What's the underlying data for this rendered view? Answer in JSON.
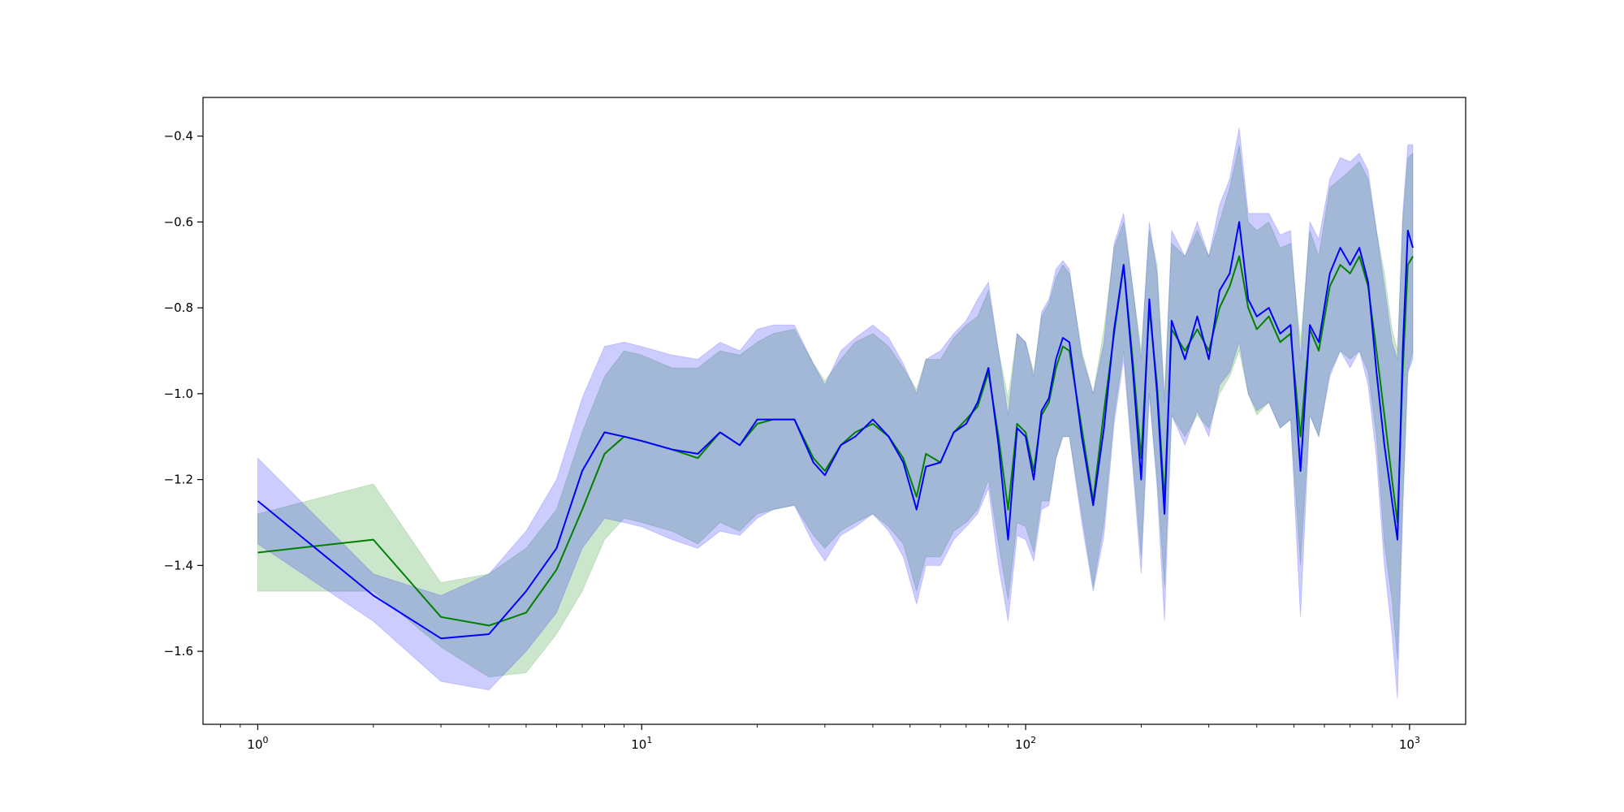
{
  "chart_data": {
    "type": "line",
    "title": "",
    "xlabel": "",
    "ylabel": "",
    "xscale": "log",
    "xlim": [
      0.72,
      1400
    ],
    "ylim": [
      -1.77,
      -0.31
    ],
    "grid": false,
    "legend": "none",
    "x_ticks": [
      {
        "value": 1,
        "base": "10",
        "exp": "0"
      },
      {
        "value": 10,
        "base": "10",
        "exp": "1"
      },
      {
        "value": 100,
        "base": "10",
        "exp": "2"
      },
      {
        "value": 1000,
        "base": "10",
        "exp": "3"
      }
    ],
    "y_ticks": [
      {
        "value": -1.6,
        "label": "−1.6"
      },
      {
        "value": -1.4,
        "label": "−1.4"
      },
      {
        "value": -1.2,
        "label": "−1.2"
      },
      {
        "value": -1.0,
        "label": "−1.0"
      },
      {
        "value": -0.8,
        "label": "−0.8"
      },
      {
        "value": -0.6,
        "label": "−0.6"
      },
      {
        "value": -0.4,
        "label": "−0.4"
      }
    ],
    "series": [
      {
        "color": "#008000",
        "band_color": "#008000",
        "band_opacity": 0.2,
        "points": [
          [
            1,
            -1.37,
            -1.28,
            -1.46
          ],
          [
            2,
            -1.34,
            -1.21,
            -1.46
          ],
          [
            3,
            -1.52,
            -1.44,
            -1.59
          ],
          [
            4,
            -1.54,
            -1.42,
            -1.66
          ],
          [
            5,
            -1.51,
            -1.36,
            -1.65
          ],
          [
            6,
            -1.41,
            -1.27,
            -1.56
          ],
          [
            7,
            -1.27,
            -1.09,
            -1.46
          ],
          [
            8,
            -1.14,
            -0.96,
            -1.34
          ],
          [
            9,
            -1.1,
            -0.9,
            -1.29
          ],
          [
            10,
            -1.11,
            -0.91,
            -1.3
          ],
          [
            12,
            -1.13,
            -0.94,
            -1.32
          ],
          [
            14,
            -1.15,
            -0.94,
            -1.35
          ],
          [
            16,
            -1.09,
            -0.9,
            -1.3
          ],
          [
            18,
            -1.12,
            -0.91,
            -1.32
          ],
          [
            20,
            -1.07,
            -0.88,
            -1.28
          ],
          [
            22,
            -1.06,
            -0.86,
            -1.27
          ],
          [
            25,
            -1.06,
            -0.85,
            -1.26
          ],
          [
            28,
            -1.15,
            -0.93,
            -1.33
          ],
          [
            30,
            -1.18,
            -0.97,
            -1.36
          ],
          [
            33,
            -1.12,
            -0.92,
            -1.32
          ],
          [
            36,
            -1.09,
            -0.88,
            -1.3
          ],
          [
            40,
            -1.07,
            -0.86,
            -1.28
          ],
          [
            44,
            -1.1,
            -0.89,
            -1.31
          ],
          [
            48,
            -1.15,
            -0.94,
            -1.35
          ],
          [
            52,
            -1.24,
            -0.99,
            -1.46
          ],
          [
            55,
            -1.14,
            -0.92,
            -1.38
          ],
          [
            60,
            -1.16,
            -0.92,
            -1.38
          ],
          [
            65,
            -1.09,
            -0.87,
            -1.32
          ],
          [
            70,
            -1.06,
            -0.84,
            -1.3
          ],
          [
            75,
            -1.03,
            -0.82,
            -1.27
          ],
          [
            80,
            -0.95,
            -0.76,
            -1.2
          ],
          [
            85,
            -1.1,
            -0.9,
            -1.35
          ],
          [
            90,
            -1.27,
            -1.01,
            -1.48
          ],
          [
            95,
            -1.07,
            -0.86,
            -1.3
          ],
          [
            100,
            -1.09,
            -0.88,
            -1.31
          ],
          [
            105,
            -1.18,
            -0.95,
            -1.37
          ],
          [
            110,
            -1.05,
            -0.82,
            -1.25
          ],
          [
            115,
            -1.02,
            -0.79,
            -1.25
          ],
          [
            120,
            -0.94,
            -0.73,
            -1.15
          ],
          [
            125,
            -0.89,
            -0.7,
            -1.1
          ],
          [
            130,
            -0.9,
            -0.72,
            -1.1
          ],
          [
            140,
            -1.08,
            -0.9,
            -1.28
          ],
          [
            150,
            -1.25,
            -1.0,
            -1.45
          ],
          [
            160,
            -1.04,
            -0.85,
            -1.3
          ],
          [
            170,
            -0.86,
            -0.66,
            -1.05
          ],
          [
            180,
            -0.7,
            -0.6,
            -0.9
          ],
          [
            190,
            -0.92,
            -0.75,
            -1.15
          ],
          [
            200,
            -1.15,
            -0.9,
            -1.38
          ],
          [
            210,
            -0.8,
            -0.62,
            -1.0
          ],
          [
            220,
            -0.98,
            -0.7,
            -1.2
          ],
          [
            230,
            -1.25,
            -1.0,
            -1.45
          ],
          [
            240,
            -0.85,
            -0.65,
            -1.05
          ],
          [
            260,
            -0.9,
            -0.68,
            -1.1
          ],
          [
            280,
            -0.85,
            -0.62,
            -1.05
          ],
          [
            300,
            -0.9,
            -0.68,
            -1.08
          ],
          [
            320,
            -0.8,
            -0.6,
            -1.0
          ],
          [
            340,
            -0.75,
            -0.52,
            -0.96
          ],
          [
            360,
            -0.68,
            -0.42,
            -0.9
          ],
          [
            380,
            -0.8,
            -0.6,
            -1.0
          ],
          [
            400,
            -0.85,
            -0.62,
            -1.05
          ],
          [
            430,
            -0.82,
            -0.6,
            -1.02
          ],
          [
            460,
            -0.88,
            -0.66,
            -1.08
          ],
          [
            490,
            -0.86,
            -0.65,
            -1.06
          ],
          [
            520,
            -1.1,
            -0.88,
            -1.4
          ],
          [
            550,
            -0.85,
            -0.62,
            -1.05
          ],
          [
            580,
            -0.9,
            -0.68,
            -1.1
          ],
          [
            620,
            -0.75,
            -0.52,
            -0.95
          ],
          [
            660,
            -0.7,
            -0.5,
            -0.9
          ],
          [
            700,
            -0.72,
            -0.48,
            -0.92
          ],
          [
            740,
            -0.68,
            -0.46,
            -0.9
          ],
          [
            780,
            -0.75,
            -0.5,
            -0.95
          ],
          [
            820,
            -0.9,
            -0.62,
            -1.1
          ],
          [
            860,
            -1.05,
            -0.72,
            -1.35
          ],
          [
            900,
            -1.2,
            -0.85,
            -1.48
          ],
          [
            930,
            -1.3,
            -0.9,
            -1.62
          ],
          [
            960,
            -0.95,
            -0.6,
            -1.25
          ],
          [
            990,
            -0.7,
            -0.45,
            -0.95
          ],
          [
            1020,
            -0.68,
            -0.44,
            -0.9
          ]
        ]
      },
      {
        "color": "#0000ff",
        "band_color": "#0000ff",
        "band_opacity": 0.2,
        "points": [
          [
            1,
            -1.25,
            -1.15,
            -1.35
          ],
          [
            2,
            -1.47,
            -1.42,
            -1.53
          ],
          [
            3,
            -1.57,
            -1.47,
            -1.67
          ],
          [
            4,
            -1.56,
            -1.42,
            -1.69
          ],
          [
            5,
            -1.46,
            -1.32,
            -1.6
          ],
          [
            6,
            -1.36,
            -1.2,
            -1.51
          ],
          [
            7,
            -1.18,
            -1.01,
            -1.36
          ],
          [
            8,
            -1.09,
            -0.89,
            -1.29
          ],
          [
            9,
            -1.1,
            -0.88,
            -1.3
          ],
          [
            10,
            -1.11,
            -0.89,
            -1.31
          ],
          [
            12,
            -1.13,
            -0.91,
            -1.34
          ],
          [
            14,
            -1.14,
            -0.92,
            -1.36
          ],
          [
            16,
            -1.09,
            -0.88,
            -1.32
          ],
          [
            18,
            -1.12,
            -0.9,
            -1.33
          ],
          [
            20,
            -1.06,
            -0.85,
            -1.29
          ],
          [
            22,
            -1.06,
            -0.84,
            -1.27
          ],
          [
            25,
            -1.06,
            -0.84,
            -1.26
          ],
          [
            28,
            -1.16,
            -0.93,
            -1.35
          ],
          [
            30,
            -1.19,
            -0.98,
            -1.39
          ],
          [
            33,
            -1.12,
            -0.9,
            -1.33
          ],
          [
            36,
            -1.1,
            -0.87,
            -1.31
          ],
          [
            40,
            -1.06,
            -0.84,
            -1.28
          ],
          [
            44,
            -1.1,
            -0.87,
            -1.32
          ],
          [
            48,
            -1.16,
            -0.93,
            -1.38
          ],
          [
            52,
            -1.27,
            -1.0,
            -1.49
          ],
          [
            55,
            -1.17,
            -0.92,
            -1.4
          ],
          [
            60,
            -1.16,
            -0.9,
            -1.4
          ],
          [
            65,
            -1.09,
            -0.86,
            -1.34
          ],
          [
            70,
            -1.07,
            -0.83,
            -1.31
          ],
          [
            75,
            -1.02,
            -0.78,
            -1.28
          ],
          [
            80,
            -0.94,
            -0.74,
            -1.22
          ],
          [
            85,
            -1.12,
            -0.9,
            -1.4
          ],
          [
            90,
            -1.34,
            -1.05,
            -1.53
          ],
          [
            95,
            -1.08,
            -0.86,
            -1.33
          ],
          [
            100,
            -1.1,
            -0.88,
            -1.34
          ],
          [
            105,
            -1.2,
            -0.96,
            -1.39
          ],
          [
            110,
            -1.04,
            -0.81,
            -1.27
          ],
          [
            115,
            -1.01,
            -0.78,
            -1.26
          ],
          [
            120,
            -0.92,
            -0.71,
            -1.15
          ],
          [
            125,
            -0.87,
            -0.69,
            -1.1
          ],
          [
            130,
            -0.88,
            -0.71,
            -1.1
          ],
          [
            140,
            -1.1,
            -0.91,
            -1.3
          ],
          [
            150,
            -1.26,
            -1.0,
            -1.46
          ],
          [
            160,
            -1.08,
            -0.88,
            -1.33
          ],
          [
            170,
            -0.85,
            -0.65,
            -1.07
          ],
          [
            180,
            -0.7,
            -0.58,
            -0.92
          ],
          [
            190,
            -0.94,
            -0.75,
            -1.17
          ],
          [
            200,
            -1.2,
            -0.92,
            -1.42
          ],
          [
            210,
            -0.78,
            -0.6,
            -1.0
          ],
          [
            220,
            -1.0,
            -0.72,
            -1.22
          ],
          [
            230,
            -1.28,
            -1.02,
            -1.53
          ],
          [
            240,
            -0.83,
            -0.62,
            -1.05
          ],
          [
            260,
            -0.92,
            -0.68,
            -1.12
          ],
          [
            280,
            -0.82,
            -0.6,
            -1.04
          ],
          [
            300,
            -0.92,
            -0.68,
            -1.1
          ],
          [
            320,
            -0.76,
            -0.56,
            -0.98
          ],
          [
            340,
            -0.72,
            -0.5,
            -0.95
          ],
          [
            360,
            -0.6,
            -0.38,
            -0.88
          ],
          [
            380,
            -0.78,
            -0.58,
            -1.0
          ],
          [
            400,
            -0.82,
            -0.58,
            -1.04
          ],
          [
            430,
            -0.8,
            -0.58,
            -1.02
          ],
          [
            460,
            -0.86,
            -0.63,
            -1.08
          ],
          [
            490,
            -0.84,
            -0.62,
            -1.06
          ],
          [
            520,
            -1.18,
            -0.92,
            -1.52
          ],
          [
            550,
            -0.84,
            -0.6,
            -1.05
          ],
          [
            580,
            -0.88,
            -0.64,
            -1.1
          ],
          [
            620,
            -0.72,
            -0.5,
            -0.96
          ],
          [
            660,
            -0.66,
            -0.45,
            -0.9
          ],
          [
            700,
            -0.7,
            -0.46,
            -0.94
          ],
          [
            740,
            -0.66,
            -0.44,
            -0.9
          ],
          [
            780,
            -0.74,
            -0.48,
            -0.98
          ],
          [
            820,
            -0.95,
            -0.62,
            -1.15
          ],
          [
            860,
            -1.12,
            -0.75,
            -1.4
          ],
          [
            900,
            -1.25,
            -0.88,
            -1.56
          ],
          [
            930,
            -1.34,
            -0.92,
            -1.71
          ],
          [
            960,
            -0.9,
            -0.58,
            -1.28
          ],
          [
            990,
            -0.62,
            -0.42,
            -0.95
          ],
          [
            1020,
            -0.66,
            -0.42,
            -0.92
          ]
        ]
      }
    ]
  }
}
